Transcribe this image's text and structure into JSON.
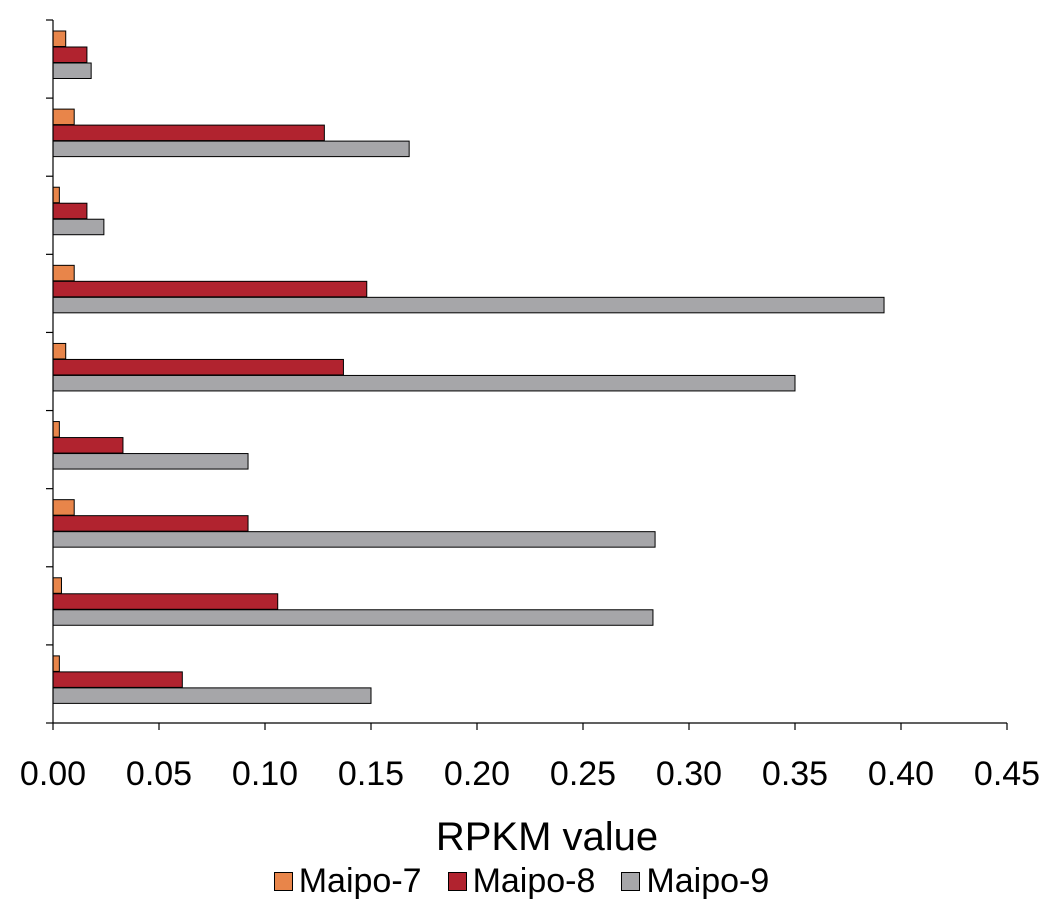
{
  "chart_data": {
    "type": "bar",
    "orientation": "horizontal",
    "title": "",
    "xlabel": "RPKM value",
    "ylabel": "",
    "xlim": [
      0,
      0.45
    ],
    "xticks": [
      "0.00",
      "0.05",
      "0.10",
      "0.15",
      "0.20",
      "0.25",
      "0.30",
      "0.35",
      "0.40",
      "0.45"
    ],
    "categories": [
      "",
      "",
      "",
      "",
      "",
      "",
      "",
      "",
      ""
    ],
    "legend_position": "bottom",
    "grid": false,
    "series": [
      {
        "name": "Maipo-7",
        "color": "#e8854a",
        "values": [
          0.006,
          0.01,
          0.003,
          0.01,
          0.006,
          0.003,
          0.01,
          0.004,
          0.003
        ]
      },
      {
        "name": "Maipo-8",
        "color": "#b1232f",
        "values": [
          0.016,
          0.128,
          0.016,
          0.148,
          0.137,
          0.033,
          0.092,
          0.106,
          0.061
        ]
      },
      {
        "name": "Maipo-9",
        "color": "#a6a6a9",
        "values": [
          0.018,
          0.168,
          0.024,
          0.392,
          0.35,
          0.092,
          0.284,
          0.283,
          0.15
        ]
      }
    ]
  }
}
